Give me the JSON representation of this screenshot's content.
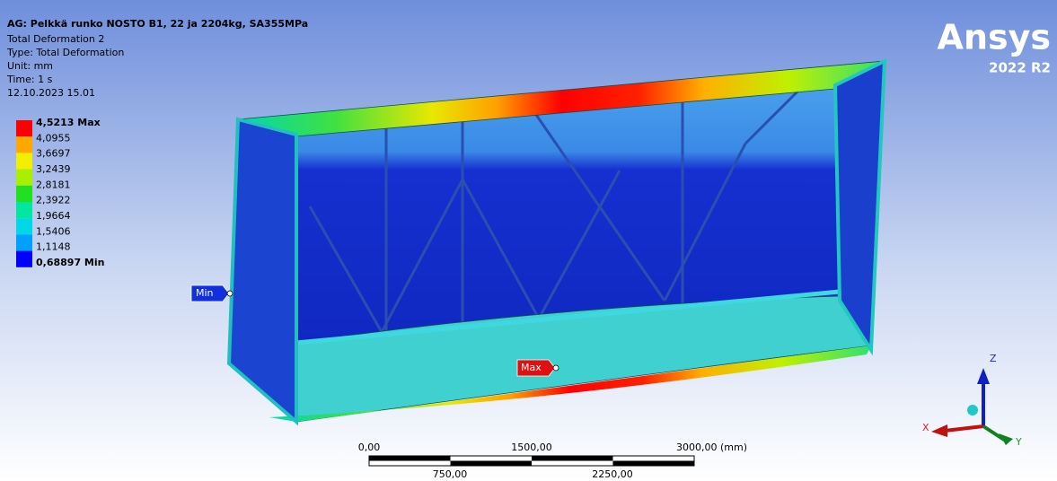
{
  "header": {
    "title": "AG: Pelkkä runko NOSTO B1, 22 ja 2204kg, SA355MPa",
    "lines": [
      "Total Deformation 2",
      "Type: Total Deformation",
      "Unit: mm",
      "Time: 1 s",
      "12.10.2023 15.01"
    ]
  },
  "legend": {
    "levels": [
      "4,5213 Max",
      "4,0955",
      "3,6697",
      "3,2439",
      "2,8181",
      "2,3922",
      "1,9664",
      "1,5406",
      "1,1148",
      "0,68897 Min"
    ]
  },
  "probes": {
    "min": "Min",
    "max": "Max"
  },
  "scale_bar": {
    "top": [
      "0,00",
      "1500,00",
      "3000,00 (mm)"
    ],
    "bottom": [
      "750,00",
      "2250,00"
    ]
  },
  "logo": {
    "name": "Ansys",
    "version": "2022 R2"
  },
  "triad": {
    "x": "X",
    "y": "Y",
    "z": "Z"
  }
}
